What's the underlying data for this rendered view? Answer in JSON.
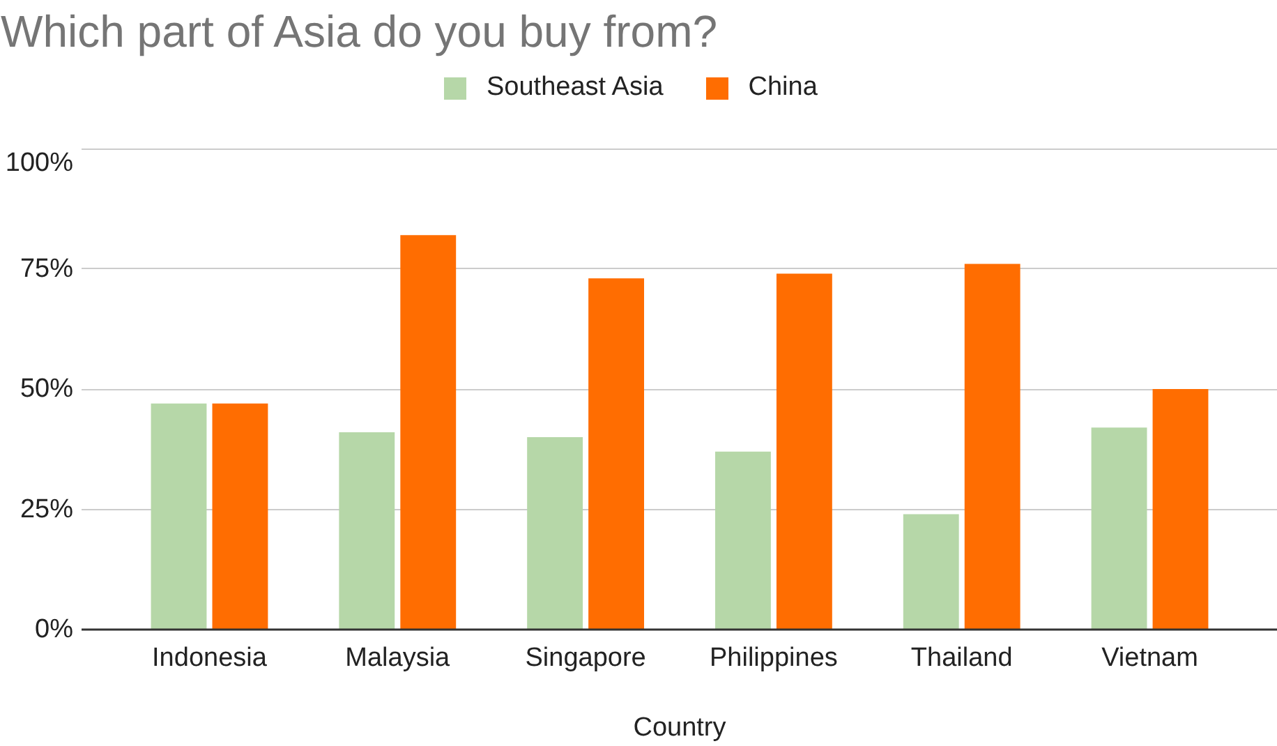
{
  "chart_data": {
    "type": "bar",
    "title": "Which part of Asia do you buy from?",
    "xlabel": "Country",
    "categories": [
      "Indonesia",
      "Malaysia",
      "Singapore",
      "Philippines",
      "Thailand",
      "Vietnam"
    ],
    "series": [
      {
        "name": "Southeast Asia",
        "color": "#b6d7a8",
        "values": [
          47,
          41,
          40,
          37,
          24,
          42
        ]
      },
      {
        "name": "China",
        "color": "#ff6d01",
        "values": [
          47,
          82,
          73,
          74,
          76,
          50
        ]
      }
    ],
    "ylim": [
      0,
      100
    ],
    "yticks": [
      {
        "value": 0,
        "label": "0%"
      },
      {
        "value": 25,
        "label": "25%"
      },
      {
        "value": 50,
        "label": "50%"
      },
      {
        "value": 75,
        "label": "75%"
      },
      {
        "value": 100,
        "label": "100%"
      }
    ],
    "grid": "y",
    "legend": "top"
  }
}
